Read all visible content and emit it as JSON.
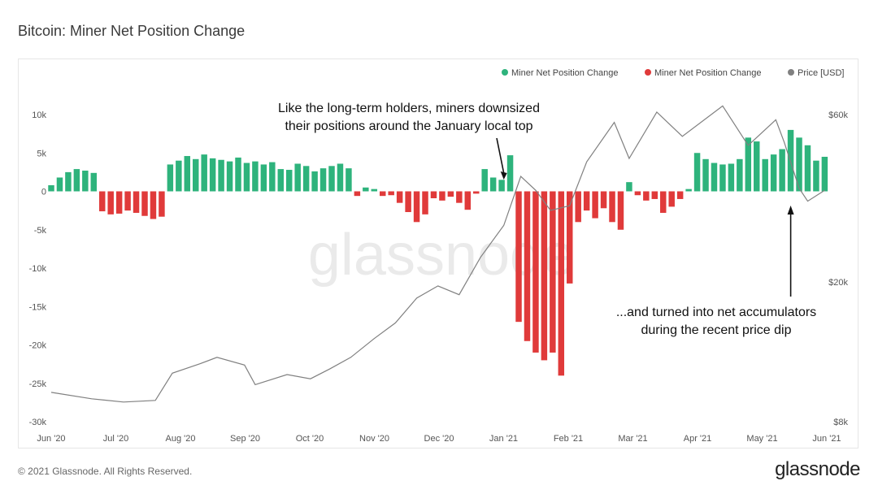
{
  "page": {
    "title": "Bitcoin: Miner Net Position Change",
    "footer": "© 2021 Glassnode. All Rights Reserved.",
    "logo_text": "glassnode",
    "watermark_text": "glassnode"
  },
  "colors": {
    "positive": "#2eb37c",
    "negative": "#e03a3a",
    "price": "#808080"
  },
  "chart_data": {
    "type": "bar",
    "title": "Bitcoin: Miner Net Position Change",
    "x_range": [
      "2020-06-01",
      "2021-06-01"
    ],
    "x_ticks": [
      "Jun '20",
      "Jul '20",
      "Aug '20",
      "Sep '20",
      "Oct '20",
      "Nov '20",
      "Dec '20",
      "Jan '21",
      "Feb '21",
      "Mar '21",
      "Apr '21",
      "May '21",
      "Jun '21"
    ],
    "y_left": {
      "range": [
        -30000,
        10000
      ],
      "ticks": [
        10000,
        5000,
        0,
        -5000,
        -10000,
        -15000,
        -20000,
        -25000,
        -30000
      ],
      "tick_labels": [
        "10k",
        "5k",
        "0",
        "-5k",
        "-10k",
        "-15k",
        "-20k",
        "-25k",
        "-30k"
      ]
    },
    "y_right": {
      "scale": "log",
      "range": [
        8000,
        60000
      ],
      "ticks": [
        60000,
        20000,
        8000
      ],
      "tick_labels": [
        "$60k",
        "$20k",
        "$8k"
      ]
    },
    "legend": {
      "placement": "top-right",
      "items": [
        {
          "label": "Miner Net Position Change",
          "color": "#2eb37c"
        },
        {
          "label": "Miner Net Position Change",
          "color": "#e03a3a"
        },
        {
          "label": "Price [USD]",
          "color": "#808080"
        }
      ]
    },
    "annotations": [
      {
        "lines": [
          "Like the long-term holders, miners downsized",
          "their positions around the January local top"
        ],
        "points_to_date": "2020-12-31"
      },
      {
        "lines": [
          "...and turned into net accumulators",
          "during the recent price dip"
        ],
        "points_to_date": "2021-05-15"
      }
    ],
    "series": [
      {
        "name": "Miner Net Position Change",
        "points": [
          [
            "2020-06-01",
            800
          ],
          [
            "2020-06-05",
            1800
          ],
          [
            "2020-06-09",
            2500
          ],
          [
            "2020-06-13",
            2900
          ],
          [
            "2020-06-17",
            2700
          ],
          [
            "2020-06-21",
            2400
          ],
          [
            "2020-06-25",
            -2600
          ],
          [
            "2020-06-29",
            -3000
          ],
          [
            "2020-07-03",
            -2900
          ],
          [
            "2020-07-07",
            -2500
          ],
          [
            "2020-07-11",
            -2800
          ],
          [
            "2020-07-15",
            -3200
          ],
          [
            "2020-07-19",
            -3600
          ],
          [
            "2020-07-23",
            -3300
          ],
          [
            "2020-07-27",
            3500
          ],
          [
            "2020-07-31",
            4000
          ],
          [
            "2020-08-04",
            4600
          ],
          [
            "2020-08-08",
            4200
          ],
          [
            "2020-08-12",
            4800
          ],
          [
            "2020-08-16",
            4300
          ],
          [
            "2020-08-20",
            4100
          ],
          [
            "2020-08-24",
            3900
          ],
          [
            "2020-08-28",
            4400
          ],
          [
            "2020-09-01",
            3700
          ],
          [
            "2020-09-05",
            3900
          ],
          [
            "2020-09-09",
            3500
          ],
          [
            "2020-09-13",
            3800
          ],
          [
            "2020-09-17",
            2900
          ],
          [
            "2020-09-21",
            2800
          ],
          [
            "2020-09-25",
            3600
          ],
          [
            "2020-09-29",
            3300
          ],
          [
            "2020-10-03",
            2600
          ],
          [
            "2020-10-07",
            3000
          ],
          [
            "2020-10-11",
            3300
          ],
          [
            "2020-10-15",
            3600
          ],
          [
            "2020-10-19",
            3000
          ],
          [
            "2020-10-23",
            -600
          ],
          [
            "2020-10-27",
            500
          ],
          [
            "2020-10-31",
            300
          ],
          [
            "2020-11-04",
            -600
          ],
          [
            "2020-11-08",
            -500
          ],
          [
            "2020-11-12",
            -1500
          ],
          [
            "2020-11-16",
            -2700
          ],
          [
            "2020-11-20",
            -4000
          ],
          [
            "2020-11-24",
            -3000
          ],
          [
            "2020-11-28",
            -900
          ],
          [
            "2020-12-02",
            -1200
          ],
          [
            "2020-12-06",
            -700
          ],
          [
            "2020-12-10",
            -1500
          ],
          [
            "2020-12-14",
            -2400
          ],
          [
            "2020-12-18",
            -300
          ],
          [
            "2020-12-22",
            2900
          ],
          [
            "2020-12-26",
            1800
          ],
          [
            "2020-12-30",
            1500
          ],
          [
            "2021-01-03",
            4700
          ],
          [
            "2021-01-07",
            -17000
          ],
          [
            "2021-01-11",
            -19500
          ],
          [
            "2021-01-15",
            -21000
          ],
          [
            "2021-01-19",
            -22000
          ],
          [
            "2021-01-23",
            -21000
          ],
          [
            "2021-01-27",
            -24000
          ],
          [
            "2021-01-31",
            -12000
          ],
          [
            "2021-02-04",
            -4000
          ],
          [
            "2021-02-08",
            -2500
          ],
          [
            "2021-02-12",
            -3500
          ],
          [
            "2021-02-16",
            -2200
          ],
          [
            "2021-02-20",
            -4000
          ],
          [
            "2021-02-24",
            -5000
          ],
          [
            "2021-02-28",
            1200
          ],
          [
            "2021-03-04",
            -500
          ],
          [
            "2021-03-08",
            -1200
          ],
          [
            "2021-03-12",
            -1000
          ],
          [
            "2021-03-16",
            -2800
          ],
          [
            "2021-03-20",
            -2000
          ],
          [
            "2021-03-24",
            -1000
          ],
          [
            "2021-03-28",
            300
          ],
          [
            "2021-04-01",
            5000
          ],
          [
            "2021-04-05",
            4200
          ],
          [
            "2021-04-09",
            3700
          ],
          [
            "2021-04-13",
            3500
          ],
          [
            "2021-04-17",
            3600
          ],
          [
            "2021-04-21",
            4200
          ],
          [
            "2021-04-25",
            7000
          ],
          [
            "2021-04-29",
            6500
          ],
          [
            "2021-05-03",
            4200
          ],
          [
            "2021-05-07",
            4800
          ],
          [
            "2021-05-11",
            5500
          ],
          [
            "2021-05-15",
            8000
          ],
          [
            "2021-05-19",
            7000
          ],
          [
            "2021-05-23",
            6000
          ],
          [
            "2021-05-27",
            4000
          ],
          [
            "2021-05-31",
            4500
          ]
        ]
      },
      {
        "name": "Price [USD]",
        "axis": "right",
        "points": [
          [
            "2020-06-01",
            9700
          ],
          [
            "2020-06-20",
            9300
          ],
          [
            "2020-07-05",
            9100
          ],
          [
            "2020-07-20",
            9200
          ],
          [
            "2020-07-28",
            11000
          ],
          [
            "2020-08-10",
            11700
          ],
          [
            "2020-08-18",
            12200
          ],
          [
            "2020-08-31",
            11600
          ],
          [
            "2020-09-05",
            10200
          ],
          [
            "2020-09-20",
            10900
          ],
          [
            "2020-10-01",
            10600
          ],
          [
            "2020-10-10",
            11300
          ],
          [
            "2020-10-20",
            12200
          ],
          [
            "2020-10-31",
            13800
          ],
          [
            "2020-11-10",
            15300
          ],
          [
            "2020-11-20",
            18000
          ],
          [
            "2020-11-30",
            19500
          ],
          [
            "2020-12-10",
            18400
          ],
          [
            "2020-12-20",
            23500
          ],
          [
            "2020-12-31",
            29000
          ],
          [
            "2021-01-08",
            40000
          ],
          [
            "2021-01-15",
            36500
          ],
          [
            "2021-01-22",
            32000
          ],
          [
            "2021-01-31",
            33000
          ],
          [
            "2021-02-08",
            44000
          ],
          [
            "2021-02-21",
            57000
          ],
          [
            "2021-02-28",
            45000
          ],
          [
            "2021-03-13",
            61000
          ],
          [
            "2021-03-25",
            52000
          ],
          [
            "2021-04-13",
            63500
          ],
          [
            "2021-04-25",
            49000
          ],
          [
            "2021-05-08",
            58000
          ],
          [
            "2021-05-12",
            50000
          ],
          [
            "2021-05-19",
            37000
          ],
          [
            "2021-05-23",
            34000
          ],
          [
            "2021-05-31",
            36500
          ]
        ]
      }
    ]
  }
}
